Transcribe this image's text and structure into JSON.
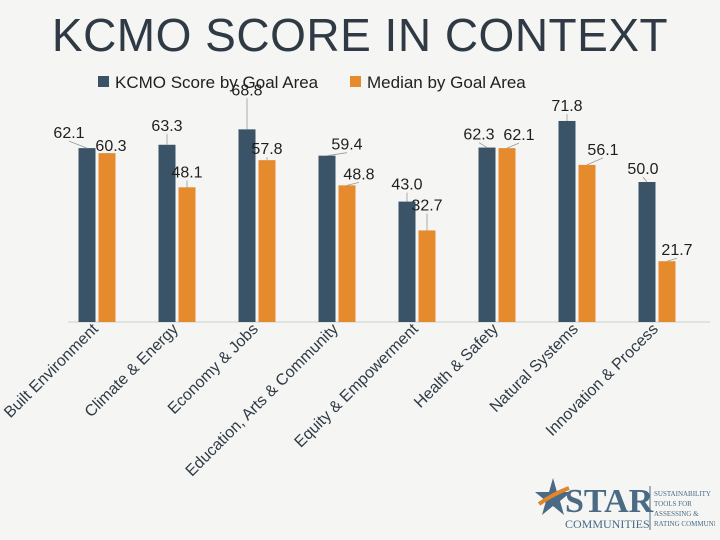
{
  "title": "KCMO SCORE IN CONTEXT",
  "chart_data": {
    "type": "bar",
    "title": "KCMO SCORE IN CONTEXT",
    "categories": [
      "Built Environment",
      "Climate & Energy",
      "Economy & Jobs",
      "Education, Arts & Community",
      "Equity & Empowerment",
      "Health & Safety",
      "Natural Systems",
      "Innovation & Process"
    ],
    "series": [
      {
        "name": "KCMO Score by Goal Area",
        "color": "#3b5366",
        "values": [
          62.1,
          63.3,
          68.8,
          59.4,
          43.0,
          62.3,
          71.8,
          50.0
        ]
      },
      {
        "name": "Median by Goal Area",
        "color": "#e68a2e",
        "values": [
          60.3,
          48.1,
          57.8,
          48.8,
          32.7,
          62.1,
          56.1,
          21.7
        ]
      }
    ],
    "data_labels": {
      "series0": [
        "62.1",
        "63.3",
        "68.8",
        "59.4",
        "43.0",
        "62.3",
        "71.8",
        "50.0"
      ],
      "series1": [
        "60.3",
        "48.1",
        "57.8",
        "48.8",
        "32.7",
        "62.1",
        "56.1",
        "21.7"
      ]
    },
    "ylim": [
      0,
      80
    ],
    "grid": false,
    "legend_position": "top"
  },
  "logo": {
    "name": "STAR",
    "sub": "COMMUNITIES",
    "tagline": [
      "SUSTAINABILITY",
      "TOOLS FOR",
      "ASSESSING &",
      "RATING COMMUNITIES"
    ]
  },
  "colors": {
    "background": "#f5f5f3",
    "dark_series": "#3b5366",
    "orange_series": "#e68a2e",
    "logo_blue": "#4a6a85",
    "logo_orange": "#e2862a"
  }
}
